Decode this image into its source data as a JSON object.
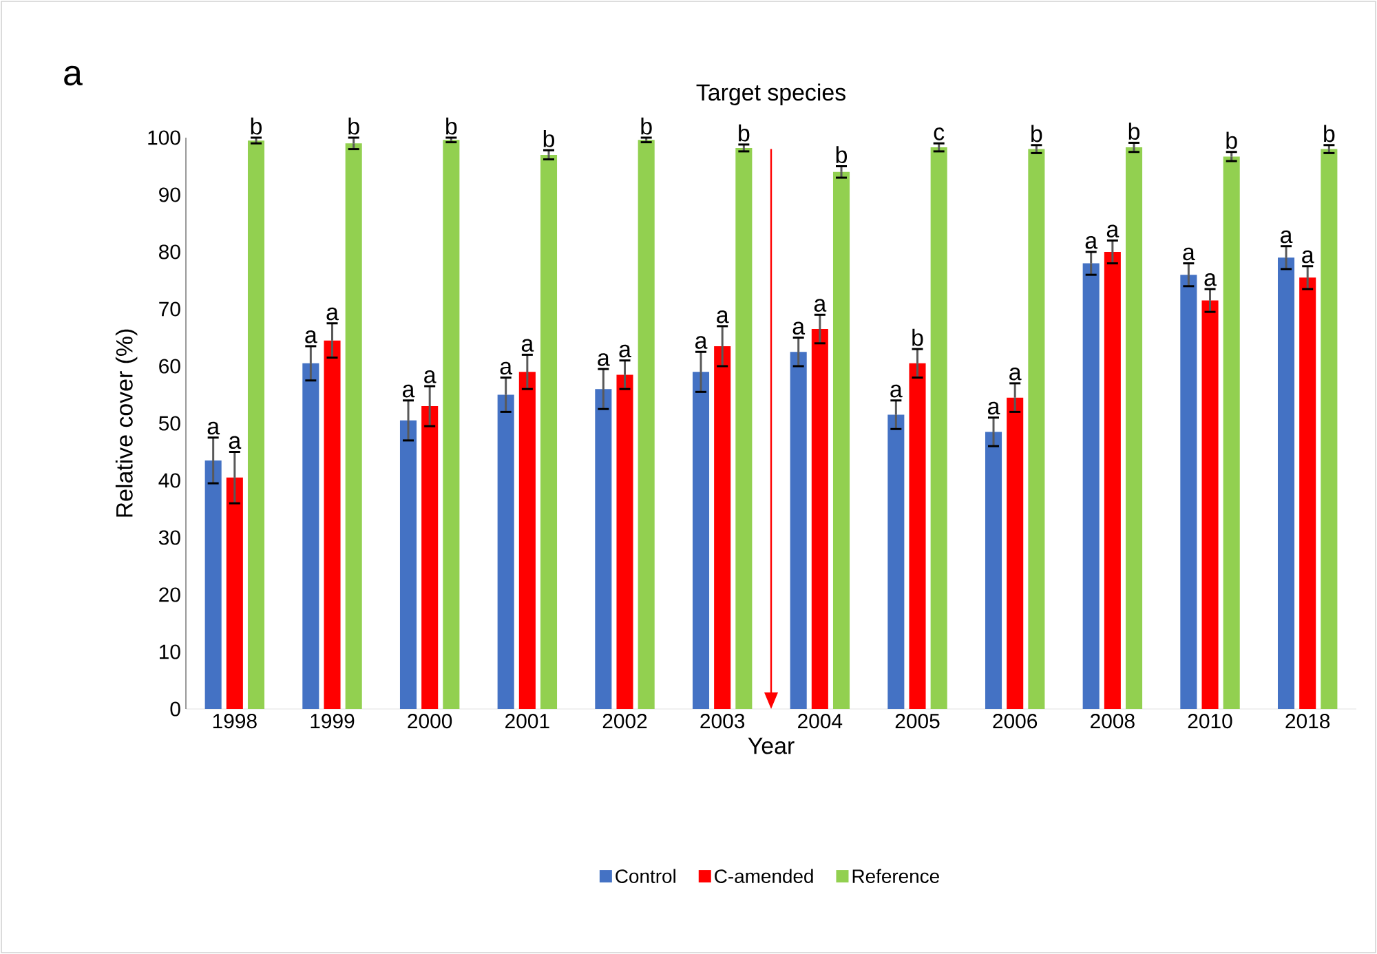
{
  "chart_data": {
    "type": "bar",
    "title": "Target species",
    "xlabel": "Year",
    "ylabel": "Relative cover (%)",
    "categories": [
      "1998",
      "1999",
      "2000",
      "2001",
      "2002",
      "2003",
      "2004",
      "2005",
      "2006",
      "2008",
      "2010",
      "2018"
    ],
    "series": [
      {
        "name": "Control",
        "color": "#4472c4",
        "values": [
          43.5,
          60.5,
          50.5,
          55,
          56,
          59,
          62.5,
          51.5,
          48.5,
          78,
          76,
          79
        ],
        "errors": [
          4,
          3,
          3.5,
          3,
          3.5,
          3.5,
          2.5,
          2.5,
          2.5,
          2,
          2,
          2
        ],
        "value_labels": [
          "a",
          "a",
          "a",
          "a",
          "a",
          "a",
          "a",
          "a",
          "a",
          "a",
          "a",
          "a"
        ]
      },
      {
        "name": "C-amended",
        "color": "#ff0000",
        "values": [
          40.5,
          64.5,
          53,
          59,
          58.5,
          63.5,
          66.5,
          60.5,
          54.5,
          80,
          71.5,
          75.5
        ],
        "errors": [
          4.5,
          3,
          3.5,
          3,
          2.5,
          3.5,
          2.5,
          2.5,
          2.5,
          2,
          2,
          2
        ],
        "value_labels": [
          "a",
          "a",
          "a",
          "a",
          "a",
          "a",
          "a",
          "b",
          "a",
          "a",
          "a",
          "a"
        ]
      },
      {
        "name": "Reference",
        "color": "#92d050",
        "values": [
          99.5,
          99,
          99.6,
          97,
          99.6,
          98.2,
          94,
          98.3,
          98,
          98.3,
          96.7,
          98
        ],
        "errors": [
          0.5,
          1,
          0.4,
          0.8,
          0.4,
          0.6,
          1,
          0.7,
          0.7,
          0.8,
          0.8,
          0.7
        ],
        "value_labels": [
          "b",
          "b",
          "b",
          "b",
          "b",
          "b",
          "b",
          "c",
          "b",
          "b",
          "b",
          "b"
        ]
      }
    ],
    "ylim": [
      0,
      100
    ],
    "yticks": [
      0,
      10,
      20,
      30,
      40,
      50,
      60,
      70,
      80,
      90,
      100
    ],
    "grid": false,
    "legend": "bottom",
    "annotations": [
      "a"
    ]
  }
}
